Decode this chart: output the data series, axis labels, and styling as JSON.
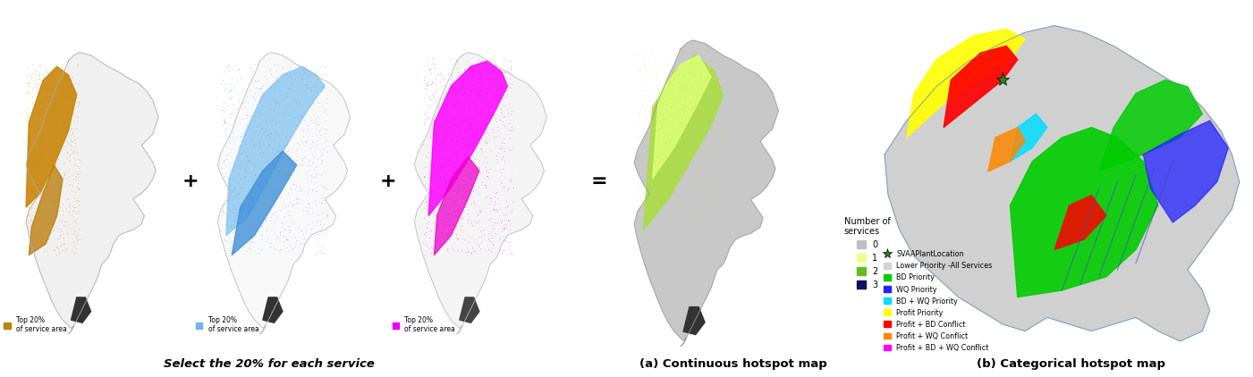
{
  "bg_color": "#ffffff",
  "map1_legend_color": "#B8860B",
  "map2_legend_color": "#6EB5E8",
  "map3_legend_color": "#EE00EE",
  "legend_text": "Top 20%\nof service area",
  "bottom_text_left": "Select the 20% for each service",
  "label_a": "(a) Continuous hotspot map",
  "label_b": "(b) Categorical hotspot map",
  "continuous_legend_title": "Number of\nservices",
  "continuous_legend_items": [
    {
      "label": "0",
      "color": "#C0C0C0"
    },
    {
      "label": "1",
      "color": "#EEFF88"
    },
    {
      "label": "2",
      "color": "#66BB22"
    },
    {
      "label": "3",
      "color": "#111166"
    }
  ],
  "categorical_legend_items": [
    {
      "label": "SVAAPlantLocation",
      "color": "#228B22",
      "marker": "star"
    },
    {
      "label": "Lower Priority -All Services",
      "color": "#D3D3D3",
      "marker": "square"
    },
    {
      "label": "BD Priority",
      "color": "#00CC00",
      "marker": "square"
    },
    {
      "label": "WQ Priority",
      "color": "#2222FF",
      "marker": "square"
    },
    {
      "label": "BD + WQ Priority",
      "color": "#00DDFF",
      "marker": "square"
    },
    {
      "label": "Profit Priority",
      "color": "#FFFF00",
      "marker": "square"
    },
    {
      "label": "Profit + BD Conflict",
      "color": "#FF0000",
      "marker": "square"
    },
    {
      "label": "Profit + WQ Conflict",
      "color": "#FF8800",
      "marker": "square"
    },
    {
      "label": "Profit + BD + WQ Conflict",
      "color": "#FF00FF",
      "marker": "square"
    }
  ]
}
